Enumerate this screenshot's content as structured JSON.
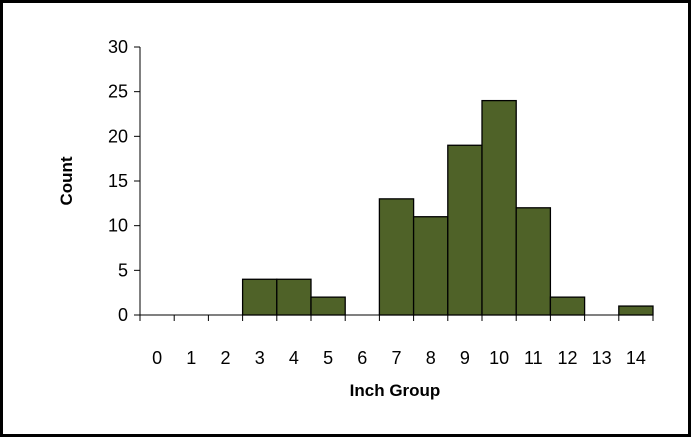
{
  "chart_data": {
    "type": "bar",
    "title": "",
    "xlabel": "Inch Group",
    "ylabel": "Count",
    "categories": [
      "0",
      "1",
      "2",
      "3",
      "4",
      "5",
      "6",
      "7",
      "8",
      "9",
      "10",
      "11",
      "12",
      "13",
      "14"
    ],
    "values": [
      0,
      0,
      0,
      4,
      4,
      2,
      0,
      13,
      11,
      19,
      24,
      12,
      2,
      0,
      1
    ],
    "ylim": [
      0,
      30
    ],
    "yticks": [
      0,
      5,
      10,
      15,
      20,
      25,
      30
    ],
    "grid": false,
    "legend": "none",
    "bar_color": "#4f6228",
    "bar_edge_color": "#000000"
  }
}
